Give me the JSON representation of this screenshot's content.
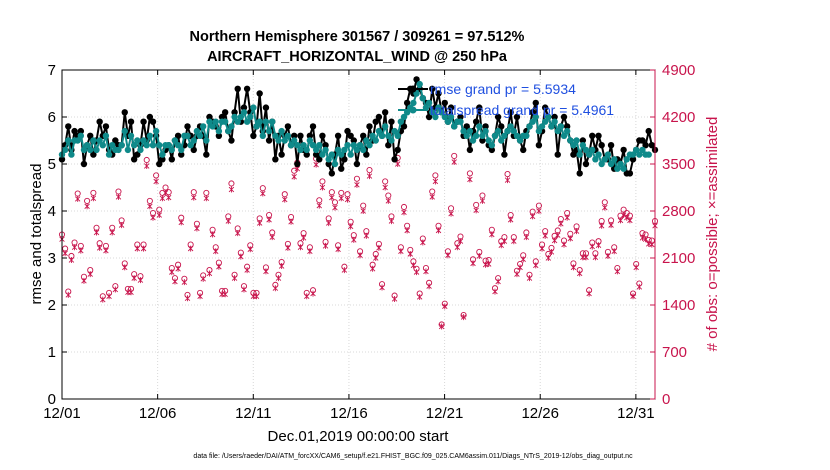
{
  "chart_data": {
    "type": "line",
    "title_line1": "Northern Hemisphere 301567 / 309261 = 97.512%",
    "title_line2": "AIRCRAFT_HORIZONTAL_WIND @ 250 hPa",
    "xlabel": "Dec.01,2019 00:00:00 start",
    "ylabel_left": "rmse and totalspread",
    "ylabel_right": "# of obs: o=possible; ×=assimilated",
    "x_tick_labels": [
      "12/01",
      "12/06",
      "12/11",
      "12/16",
      "12/21",
      "12/26",
      "12/31"
    ],
    "x_ticks_day": [
      0,
      5,
      10,
      15,
      20,
      25,
      30
    ],
    "xlim_days": [
      0,
      31
    ],
    "y_left_ticks": [
      0,
      1,
      2,
      3,
      4,
      5,
      6,
      7
    ],
    "ylim_left": [
      0,
      7
    ],
    "y_right_ticks": [
      0,
      700,
      1400,
      2100,
      2800,
      3500,
      4200,
      4900
    ],
    "ylim_right": [
      0,
      4900
    ],
    "legend": [
      {
        "name": "rmse grand pr = 5.5934",
        "color": "#000000"
      },
      {
        "name": "totalspread grand pr = 5.4961",
        "color": "#0f8a8a"
      }
    ],
    "series": [
      {
        "name": "rmse",
        "color": "#000000",
        "values": [
          5.1,
          5.4,
          5.8,
          5.3,
          5.7,
          5.6,
          5.7,
          5.0,
          5.4,
          5.6,
          5.2,
          5.5,
          5.9,
          5.6,
          5.8,
          5.3,
          5.2,
          5.5,
          5.4,
          5.4,
          6.1,
          5.6,
          5.9,
          5.1,
          5.2,
          5.4,
          5.9,
          5.5,
          6.0,
          5.9,
          5.6,
          5.0,
          5.1,
          5.3,
          5.4,
          5.1,
          5.5,
          5.6,
          5.2,
          5.4,
          5.8,
          5.6,
          5.3,
          5.6,
          5.8,
          5.6,
          5.2,
          6.0,
          5.9,
          5.8,
          5.6,
          6.0,
          6.1,
          5.7,
          5.5,
          6.1,
          6.6,
          5.9,
          6.2,
          6.6,
          6.1,
          5.6,
          5.8,
          6.5,
          5.7,
          6.2,
          5.5,
          5.9,
          5.1,
          5.6,
          5.2,
          5.6,
          5.8,
          5.4,
          5.6,
          5.0,
          5.6,
          5.3,
          5.2,
          5.6,
          5.8,
          5.2,
          5.1,
          5.6,
          5.4,
          5.0,
          4.8,
          5.2,
          5.6,
          4.9,
          5.1,
          5.7,
          5.6,
          5.5,
          5.0,
          5.4,
          5.6,
          5.2,
          5.8,
          5.5,
          5.9,
          6.0,
          5.6,
          6.1,
          5.4,
          5.9,
          5.1,
          5.3,
          5.7,
          5.8,
          6.3,
          6.6,
          6.5,
          6.8,
          6.6,
          6.4,
          6.3,
          6.0,
          6.6,
          6.2,
          6.5,
          6.1,
          6.3,
          5.9,
          6.2,
          5.8,
          5.9,
          6.0,
          5.6,
          5.8,
          5.3,
          5.7,
          5.9,
          6.2,
          5.5,
          5.8,
          5.4,
          5.3,
          5.6,
          6.0,
          5.8,
          5.2,
          5.7,
          6.1,
          5.6,
          6.0,
          5.5,
          5.3,
          5.7,
          5.8,
          6.1,
          6.3,
          5.4,
          5.7,
          6.2,
          6.0,
          5.8,
          6.0,
          5.2,
          5.8,
          6.0,
          5.8,
          5.5,
          5.2,
          5.3,
          4.8,
          5.5,
          5.0,
          5.2,
          5.6,
          5.3,
          5.6,
          5.4,
          5.1,
          5.1,
          5.4,
          4.9,
          5.1,
          5.0,
          5.3,
          4.8,
          4.8,
          5.1,
          5.3,
          5.5,
          5.5,
          5.4,
          5.7,
          5.4,
          5.3
        ]
      },
      {
        "name": "totalspread",
        "color": "#0f8a8a",
        "values": [
          5.2,
          5.3,
          5.5,
          5.2,
          5.5,
          5.5,
          5.6,
          5.3,
          5.4,
          5.3,
          5.5,
          5.3,
          5.5,
          5.4,
          5.6,
          5.2,
          5.4,
          5.3,
          5.3,
          5.4,
          5.7,
          5.3,
          5.6,
          5.4,
          5.5,
          5.3,
          5.5,
          5.4,
          5.6,
          5.4,
          5.7,
          5.4,
          5.2,
          5.4,
          5.4,
          5.3,
          5.5,
          5.4,
          5.3,
          5.6,
          5.6,
          5.4,
          5.5,
          5.7,
          5.6,
          5.8,
          5.5,
          5.9,
          5.8,
          5.9,
          5.7,
          5.9,
          5.9,
          5.7,
          5.8,
          6.0,
          5.9,
          6.0,
          6.1,
          5.9,
          6.0,
          6.2,
          5.8,
          5.9,
          5.6,
          5.9,
          5.7,
          5.9,
          5.6,
          5.5,
          5.7,
          5.5,
          5.6,
          5.4,
          5.5,
          5.4,
          5.3,
          5.4,
          5.3,
          5.5,
          5.4,
          5.3,
          5.4,
          5.2,
          5.3,
          5.1,
          5.2,
          5.0,
          5.3,
          5.2,
          5.3,
          5.4,
          5.2,
          5.4,
          5.3,
          5.4,
          5.3,
          5.5,
          5.4,
          5.6,
          5.5,
          5.7,
          5.6,
          5.8,
          5.6,
          5.5,
          5.7,
          5.6,
          5.9,
          6.0,
          6.1,
          6.2,
          6.3,
          6.5,
          6.7,
          6.4,
          6.2,
          6.3,
          6.1,
          6.0,
          6.2,
          6.1,
          6.0,
          5.9,
          6.0,
          5.8,
          5.9,
          5.9,
          5.7,
          5.6,
          5.7,
          5.5,
          5.6,
          5.8,
          5.6,
          5.7,
          5.5,
          5.4,
          5.6,
          5.7,
          5.5,
          5.6,
          5.7,
          5.8,
          5.7,
          5.6,
          5.5,
          5.6,
          5.6,
          5.8,
          5.9,
          6.0,
          5.7,
          5.8,
          5.9,
          6.0,
          5.8,
          5.9,
          5.7,
          5.8,
          5.6,
          5.7,
          5.5,
          5.4,
          5.5,
          5.2,
          5.4,
          5.3,
          5.2,
          5.3,
          5.1,
          5.2,
          5.0,
          5.1,
          5.2,
          5.0,
          5.1,
          4.9,
          5.0,
          4.9,
          5.1,
          5.2,
          5.2,
          5.3,
          5.2,
          5.3,
          5.2,
          5.2
        ]
      },
      {
        "name": "obs possible (o)",
        "color": "#c8144c",
        "values": [
          2450,
          2240,
          1600,
          2130,
          2330,
          3060,
          2280,
          1820,
          2950,
          1920,
          3070,
          2550,
          2320,
          1530,
          2280,
          1580,
          2550,
          1680,
          3090,
          2660,
          2020,
          1640,
          1640,
          1860,
          2300,
          1830,
          2300,
          3560,
          2950,
          2770,
          3330,
          2820,
          3070,
          3150,
          3080,
          1950,
          1800,
          2000,
          2700,
          1790,
          1550,
          2300,
          3080,
          2610,
          1580,
          1840,
          3070,
          1920,
          2520,
          2260,
          2030,
          1610,
          1610,
          2720,
          3210,
          1850,
          2540,
          2180,
          1680,
          1970,
          2290,
          1580,
          1580,
          2690,
          3140,
          1960,
          2740,
          2480,
          1700,
          1850,
          2040,
          3050,
          2310,
          2710,
          3400,
          3520,
          2320,
          2470,
          1580,
          2260,
          1620,
          3580,
          2960,
          3240,
          2340,
          2690,
          3080,
          2930,
          2290,
          3070,
          1970,
          3050,
          2640,
          2440,
          3280,
          2200,
          2880,
          2500,
          3410,
          2000,
          2160,
          2310,
          1710,
          3240,
          3030,
          2720,
          1540,
          3590,
          2260,
          2860,
          2580,
          2220,
          2050,
          1940,
          1570,
          2390,
          1950,
          1730,
          3090,
          3330,
          2580,
          1110,
          1420,
          2200,
          2840,
          3620,
          2320,
          2420,
          1250,
          4040,
          3360,
          2080,
          2890,
          2190,
          3030,
          2060,
          2070,
          2520,
          1650,
          1800,
          2350,
          2410,
          3350,
          2740,
          2410,
          1910,
          2010,
          2140,
          2480,
          1850,
          2790,
          2050,
          2880,
          2300,
          2500,
          2160,
          2250,
          2430,
          2510,
          2680,
          2360,
          2770,
          2460,
          2020,
          2570,
          1920,
          2170,
          2170,
          1620,
          2330,
          2170,
          2350,
          2650,
          2930,
          2190,
          2660,
          2260,
          1950,
          2730,
          2820,
          2770,
          2730,
          1570,
          2010,
          1720,
          2470,
          2450,
          2370,
          2360,
          2650
        ]
      },
      {
        "name": "obs assimilated (x)",
        "color": "#c8144c",
        "values": [
          2380,
          2170,
          1550,
          2070,
          2260,
          2980,
          2210,
          1760,
          2870,
          1860,
          2990,
          2480,
          2250,
          1480,
          2210,
          1530,
          2480,
          1630,
          3010,
          2590,
          1960,
          1590,
          1590,
          1800,
          2240,
          1770,
          2240,
          3470,
          2870,
          2700,
          3240,
          2740,
          2990,
          3070,
          3000,
          1890,
          1750,
          1940,
          2630,
          1740,
          1500,
          2240,
          3000,
          2540,
          1530,
          1790,
          2990,
          1870,
          2450,
          2200,
          1970,
          1560,
          1560,
          2650,
          3120,
          1800,
          2470,
          2120,
          1630,
          1920,
          2230,
          1530,
          1530,
          2620,
          3060,
          1900,
          2670,
          2410,
          1650,
          1800,
          1980,
          2970,
          2250,
          2640,
          3310,
          3430,
          2260,
          2400,
          1530,
          2200,
          1570,
          3490,
          2880,
          3150,
          2280,
          2620,
          3000,
          2850,
          2230,
          2990,
          1920,
          2970,
          2570,
          2370,
          3190,
          2140,
          2800,
          2430,
          3320,
          1940,
          2100,
          2250,
          1660,
          3150,
          2950,
          2650,
          1490,
          3500,
          2200,
          2780,
          2510,
          2160,
          1990,
          1890,
          1520,
          2330,
          1900,
          1680,
          3010,
          3240,
          2510,
          1080,
          1380,
          2140,
          2760,
          3530,
          2260,
          2350,
          1220,
          3940,
          3270,
          2020,
          2810,
          2130,
          2950,
          2000,
          2010,
          2450,
          1600,
          1750,
          2290,
          2350,
          3260,
          2670,
          2350,
          1860,
          1960,
          2080,
          2410,
          1800,
          2720,
          1990,
          2800,
          2240,
          2430,
          2100,
          2190,
          2360,
          2440,
          2610,
          2300,
          2700,
          2390,
          1960,
          2500,
          1870,
          2110,
          2110,
          1570,
          2270,
          2110,
          2290,
          2580,
          2850,
          2130,
          2590,
          2200,
          1900,
          2660,
          2740,
          2700,
          2660,
          1530,
          1960,
          1670,
          2400,
          2380,
          2310,
          2300,
          2580
        ]
      }
    ],
    "footnote": "data file: /Users/raeder/DAI/ATM_forcXX/CAM6_setup/f.e21.FHIST_BGC.f09_025.CAM6assim.011/Diags_NTrS_2019-12/obs_diag_output.nc"
  }
}
